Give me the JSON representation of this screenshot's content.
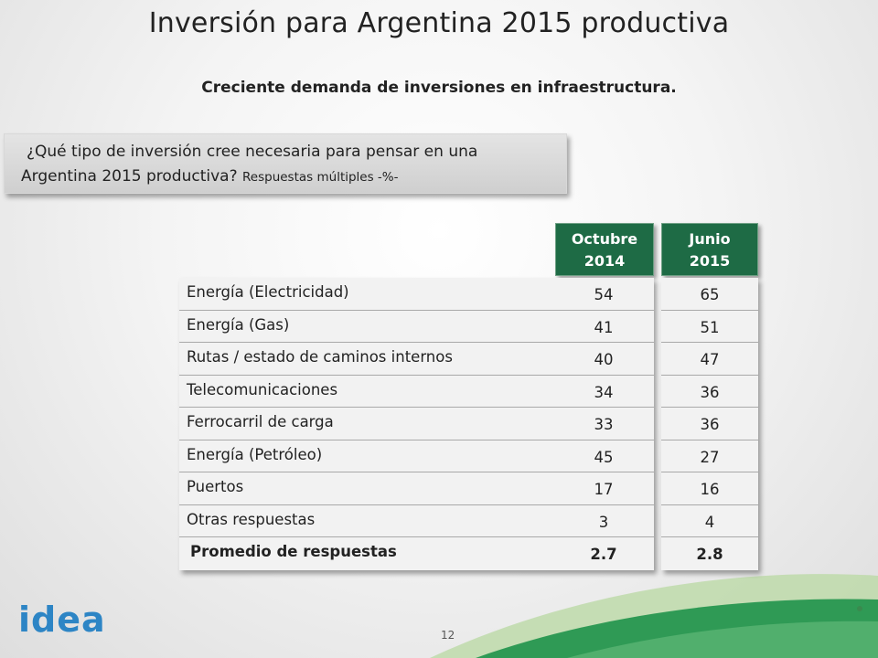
{
  "title": "Inversión para Argentina 2015 productiva",
  "subtitle": "Creciente demanda de inversiones en infraestructura.",
  "question": {
    "line1": "¿Qué tipo de inversión cree necesaria para pensar en una",
    "line2": "Argentina 2015 productiva?",
    "note": "Respuestas múltiples -%-"
  },
  "table": {
    "headers": [
      {
        "line1": "Octubre",
        "line2": "2014"
      },
      {
        "line1": "Junio",
        "line2": "2015"
      }
    ],
    "rows": [
      {
        "label": "Energía (Electricidad)",
        "oct": "54",
        "jun": "65"
      },
      {
        "label": "Energía (Gas)",
        "oct": "41",
        "jun": "51"
      },
      {
        "label": "Rutas / estado de caminos internos",
        "oct": "40",
        "jun": "47"
      },
      {
        "label": "Telecomunicaciones",
        "oct": "34",
        "jun": "36"
      },
      {
        "label": "Ferrocarril de carga",
        "oct": "33",
        "jun": "36"
      },
      {
        "label": "Energía (Petróleo)",
        "oct": "45",
        "jun": "27"
      },
      {
        "label": "Puertos",
        "oct": "17",
        "jun": "16"
      },
      {
        "label": "Otras respuestas",
        "oct": "3",
        "jun": "4"
      },
      {
        "label": "Promedio de respuestas",
        "oct": "2.7",
        "jun": "2.8"
      }
    ]
  },
  "footer": {
    "page_number": "12",
    "logo_text": "idea"
  },
  "colors": {
    "header_green": "#1e6b45",
    "logo_blue": "#2d85c5",
    "swoosh_green": "#2f9a55"
  }
}
